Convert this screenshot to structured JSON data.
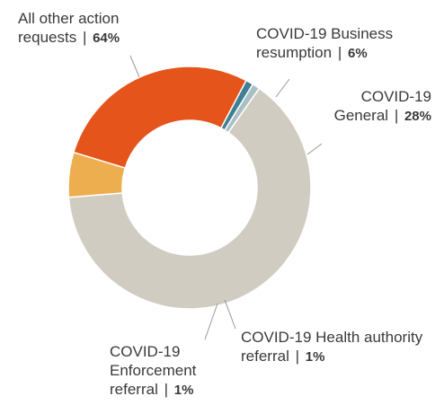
{
  "chart_data": {
    "type": "donut",
    "separator": "|",
    "categories": [
      "All other action requests",
      "COVID-19 Business resumption",
      "COVID-19 General",
      "COVID-19 Health authority referral",
      "COVID-19 Enforcement referral"
    ],
    "values": [
      64,
      6,
      28,
      1,
      1
    ],
    "value_labels": [
      "64%",
      "6%",
      "28%",
      "1%",
      "1%"
    ],
    "colors": [
      "#d1ccc2",
      "#edae4f",
      "#e4541b",
      "#3f7f93",
      "#a9bfc6"
    ]
  }
}
